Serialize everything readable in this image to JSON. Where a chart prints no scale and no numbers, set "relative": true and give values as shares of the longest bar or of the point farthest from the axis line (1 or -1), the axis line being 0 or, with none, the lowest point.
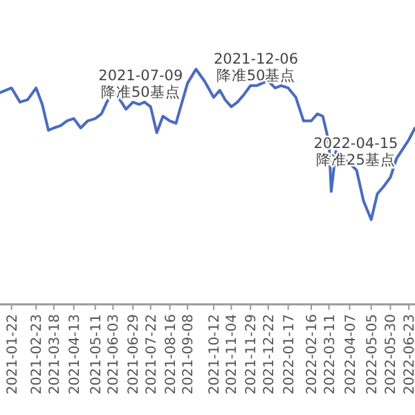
{
  "chart_data": {
    "type": "line",
    "relative": true,
    "x": [
      "2021-01-07",
      "2021-01-22",
      "2021-02-02",
      "2021-02-12",
      "2021-02-23",
      "2021-03-03",
      "2021-03-11",
      "2021-03-18",
      "2021-03-27",
      "2021-04-04",
      "2021-04-13",
      "2021-04-22",
      "2021-05-01",
      "2021-05-11",
      "2021-05-19",
      "2021-05-26",
      "2021-06-03",
      "2021-06-12",
      "2021-06-20",
      "2021-06-29",
      "2021-07-07",
      "2021-07-14",
      "2021-07-22",
      "2021-07-30",
      "2021-08-07",
      "2021-08-16",
      "2021-08-24",
      "2021-08-31",
      "2021-09-08",
      "2021-09-19",
      "2021-09-30",
      "2021-10-12",
      "2021-10-20",
      "2021-10-27",
      "2021-11-04",
      "2021-11-12",
      "2021-11-20",
      "2021-11-29",
      "2021-12-07",
      "2021-12-14",
      "2021-12-22",
      "2021-12-31",
      "2022-01-08",
      "2022-01-17",
      "2022-01-27",
      "2022-02-06",
      "2022-02-16",
      "2022-02-24",
      "2022-03-03",
      "2022-03-11",
      "2022-03-14",
      "2022-03-20",
      "2022-03-29",
      "2022-04-07",
      "2022-04-16",
      "2022-04-25",
      "2022-05-05",
      "2022-05-13",
      "2022-05-21",
      "2022-05-30",
      "2022-06-07",
      "2022-06-15",
      "2022-06-23",
      "2022-07-01"
    ],
    "series": [
      {
        "color": "#4a6bbf",
        "values": [
          0.9,
          0.92,
          0.86,
          0.87,
          0.92,
          0.85,
          0.74,
          0.75,
          0.76,
          0.78,
          0.79,
          0.75,
          0.78,
          0.79,
          0.81,
          0.86,
          0.9,
          0.87,
          0.83,
          0.86,
          0.85,
          0.86,
          0.84,
          0.73,
          0.8,
          0.78,
          0.77,
          0.85,
          0.94,
          1.0,
          0.95,
          0.88,
          0.91,
          0.87,
          0.84,
          0.86,
          0.89,
          0.93,
          0.93,
          0.94,
          0.95,
          0.92,
          0.93,
          0.92,
          0.88,
          0.78,
          0.78,
          0.81,
          0.8,
          0.69,
          0.48,
          0.65,
          0.62,
          0.6,
          0.57,
          0.44,
          0.36,
          0.47,
          0.5,
          0.54,
          0.62,
          0.66,
          0.7,
          0.75
        ]
      }
    ],
    "xlim": [
      "2021-01-07",
      "2022-07-01"
    ],
    "xticks": [
      "2021-01-22",
      "2021-02-23",
      "2021-03-18",
      "2021-04-13",
      "2021-05-11",
      "2021-06-03",
      "2021-06-29",
      "2021-07-22",
      "2021-08-16",
      "2021-09-08",
      "2021-10-12",
      "2021-11-04",
      "2021-11-29",
      "2021-12-22",
      "2022-01-17",
      "2022-02-16",
      "2022-03-11",
      "2022-04-07",
      "2022-05-05",
      "2022-05-30",
      "2022-06-23"
    ],
    "annotations": [
      {
        "text": "2021-07-09\n降准50基点",
        "x": "2021-07-09",
        "y": 0.86
      },
      {
        "text": "2021-12-06\n降准50基点",
        "x": "2021-12-06",
        "y": 0.93
      },
      {
        "text": "2022-04-15\n降准25基点",
        "x": "2022-04-15",
        "y": 0.57
      }
    ],
    "marker": "none",
    "line_style": "solid"
  }
}
